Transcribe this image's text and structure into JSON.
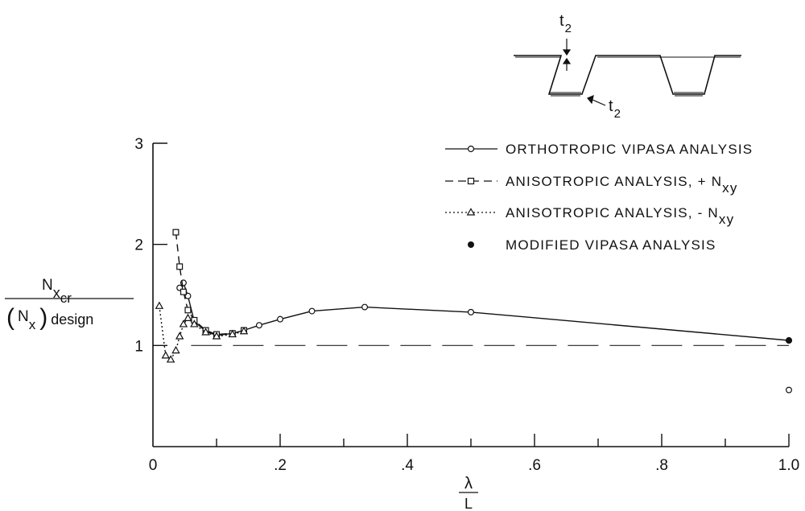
{
  "chart_data": {
    "type": "line",
    "x_axis": {
      "range": [
        0,
        1.0
      ],
      "major_ticks": [
        0,
        0.2,
        0.4,
        0.6,
        0.8,
        1.0
      ],
      "tick_labels": [
        "0",
        ".2",
        ".4",
        ".6",
        ".8",
        "1.0"
      ],
      "minor_ticks": [
        0.1,
        0.3,
        0.5,
        0.7,
        0.9
      ],
      "label_numerator": "λ",
      "label_denominator": "L"
    },
    "y_axis": {
      "range": [
        0,
        3
      ],
      "ticks": [
        1,
        2,
        3
      ],
      "tick_labels": [
        "1",
        "2",
        "3"
      ],
      "label_numerator_main": "N",
      "label_numerator_sub": "x",
      "label_numerator_subsub": "cr",
      "label_denominator_open": "(",
      "label_denominator_main": "N",
      "label_denominator_sub": "x",
      "label_denominator_close": ")",
      "label_denominator_suffix": "design"
    },
    "reference_line": {
      "y": 1.0,
      "style": "long-dash"
    },
    "series": [
      {
        "name": "ORTHOTROPIC VIPASA ANALYSIS",
        "style": "solid",
        "marker": "circle",
        "x": [
          0.042,
          0.048,
          0.055,
          0.065,
          0.083,
          0.1,
          0.125,
          0.143,
          0.167,
          0.2,
          0.25,
          0.333,
          0.5,
          1.0
        ],
        "y": [
          1.57,
          1.62,
          1.49,
          1.24,
          1.14,
          1.1,
          1.12,
          1.15,
          1.2,
          1.26,
          1.34,
          1.38,
          1.33,
          1.05
        ]
      },
      {
        "name": "ANISOTROPIC ANALYSIS, + N_xy",
        "legend_main": "ANISOTROPIC ANALYSIS, + N",
        "legend_sub": "xy",
        "style": "dashed",
        "marker": "square",
        "x": [
          0.036,
          0.042,
          0.048,
          0.055,
          0.065,
          0.083,
          0.1,
          0.125,
          0.143
        ],
        "y": [
          2.12,
          1.78,
          1.53,
          1.35,
          1.25,
          1.15,
          1.11,
          1.12,
          1.15
        ]
      },
      {
        "name": "ANISOTROPIC ANALYSIS, - N_xy",
        "legend_main": "ANISOTROPIC ANALYSIS, - N",
        "legend_sub": "xy",
        "style": "dotted",
        "marker": "triangle",
        "x": [
          0.01,
          0.02,
          0.028,
          0.036,
          0.042,
          0.048,
          0.055,
          0.065,
          0.083,
          0.1,
          0.125,
          0.143
        ],
        "y": [
          1.39,
          0.9,
          0.86,
          0.95,
          1.09,
          1.21,
          1.27,
          1.21,
          1.13,
          1.09,
          1.11,
          1.14
        ]
      },
      {
        "name": "MODIFIED VIPASA ANALYSIS",
        "style": "none",
        "marker": "filled-circle",
        "x": [
          1.0
        ],
        "y": [
          1.05
        ]
      }
    ],
    "extra_points": [
      {
        "x": 1.0,
        "y": 0.56,
        "marker": "circle"
      }
    ],
    "legend": {
      "position": "top-right"
    }
  },
  "inset": {
    "label_top_main": "t",
    "label_top_sub": "2",
    "label_right_main": "t",
    "label_right_sub": "2"
  }
}
